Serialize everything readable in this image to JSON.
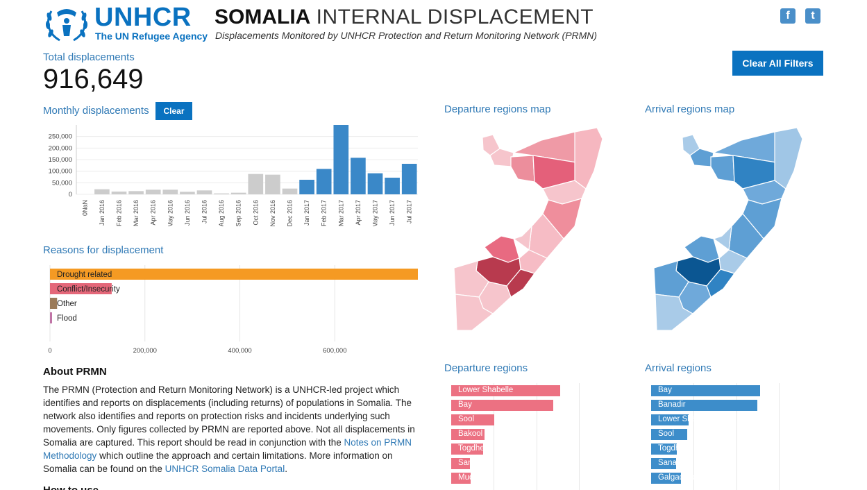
{
  "header": {
    "logo_name": "UNHCR",
    "logo_subtitle": "The UN Refugee Agency",
    "title_bold": "SOMALIA",
    "title_light": "INTERNAL DISPLACEMENT",
    "subtitle": "Displacements Monitored by UNHCR Protection and Return Monitoring Network (PRMN)",
    "facebook_glyph": "f",
    "twitter_glyph": "t"
  },
  "icons": {
    "logo": "laurel-person-emblem-icon",
    "facebook": "facebook-icon",
    "twitter": "twitter-icon"
  },
  "colors": {
    "brand_blue": "#0a72c0",
    "label_blue": "#2f79b5",
    "grey_bar": "#cccccc",
    "monthly_blue": "#3a88c8",
    "drought": "#f59a23",
    "conflict": "#e46779",
    "other": "#9b7b5a",
    "flood": "#c074a6",
    "departure_bar": "#ec7182",
    "arrival_bar": "#3d8dca"
  },
  "total": {
    "label": "Total displacements",
    "value": "916,649"
  },
  "buttons": {
    "clear_all": "Clear All Filters",
    "clear": "Clear"
  },
  "monthly": {
    "label": "Monthly displacements"
  },
  "reasons": {
    "label": "Reasons for displacement"
  },
  "maps": {
    "departure_label": "Departure regions map",
    "arrival_label": "Arrival regions map"
  },
  "departure_regions": {
    "label": "Departure regions",
    "xmax": 500000,
    "items": [
      {
        "name": "Lower Shabelle",
        "value": 320000
      },
      {
        "name": "Bay",
        "value": 300000
      },
      {
        "name": "Sool",
        "value": 127000
      },
      {
        "name": "Bakool",
        "value": 97000
      },
      {
        "name": "Togdheer",
        "value": 93000
      },
      {
        "name": "Sanaag",
        "value": 55000
      },
      {
        "name": "Mudug",
        "value": 58000
      }
    ]
  },
  "arrival_regions": {
    "label": "Arrival regions",
    "xmax": 500000,
    "items": [
      {
        "name": "Bay",
        "value": 320000
      },
      {
        "name": "Banadir",
        "value": 312000
      },
      {
        "name": "Lower Shabelle",
        "value": 110000
      },
      {
        "name": "Sool",
        "value": 106000
      },
      {
        "name": "Togdheer",
        "value": 75000
      },
      {
        "name": "Sanaag",
        "value": 73000
      },
      {
        "name": "Galgaduud",
        "value": 88000
      }
    ]
  },
  "about": {
    "title": "About PRMN",
    "text_1": "The PRMN (Protection and Return Monitoring Network) is a UNHCR-led project which identifies and reports on displacements (including returns) of populations in Somalia. The network also identifies and reports on protection risks and incidents underlying such movements. Only figures collected by PRMN are reported above. Not all displacements in Somalia are captured. This report should be read in conjunction with the ",
    "link_1": "Notes on PRMN Methodology",
    "text_2": " which outline the approach and certain limitations. More information on Somalia can be found on the ",
    "link_2": "UNHCR Somalia Data Portal",
    "text_3": ".",
    "next_heading": "How to use"
  },
  "chart_data": [
    {
      "type": "bar",
      "title": "Monthly displacements",
      "categories": [
        "0NaN",
        "Jan 2016",
        "Feb 2016",
        "Mar 2016",
        "Apr 2016",
        "May 2016",
        "Jun 2016",
        "Jul 2016",
        "Aug 2016",
        "Sep 2016",
        "Oct 2016",
        "Nov 2016",
        "Dec 2016",
        "Jan 2017",
        "Feb 2017",
        "Mar 2017",
        "Apr 2017",
        "May 2017",
        "Jun 2017",
        "Jul 2017"
      ],
      "values": [
        0,
        22000,
        12000,
        14000,
        20000,
        20000,
        11000,
        17000,
        4000,
        7000,
        88000,
        85000,
        25000,
        63000,
        110000,
        300000,
        158000,
        91000,
        72000,
        132000
      ],
      "highlighted": [
        false,
        false,
        false,
        false,
        false,
        false,
        false,
        false,
        false,
        false,
        false,
        false,
        false,
        true,
        true,
        true,
        true,
        true,
        true,
        true
      ],
      "yticks": [
        0,
        50000,
        100000,
        150000,
        200000,
        250000
      ],
      "ytick_labels": [
        "0",
        "50,000",
        "100,000",
        "150,000",
        "200,000",
        "250,000"
      ],
      "ylim": [
        0,
        300000
      ]
    },
    {
      "type": "bar",
      "title": "Reasons for displacement",
      "orientation": "horizontal",
      "categories": [
        "Drought related",
        "Conflict/Insecurity",
        "Other",
        "Flood"
      ],
      "values": [
        775000,
        130000,
        15000,
        4000
      ],
      "xticks": [
        0,
        200000,
        400000,
        600000
      ],
      "xtick_labels": [
        "0",
        "200,000",
        "400,000",
        "600,000"
      ],
      "xlim": [
        0,
        775000
      ]
    }
  ]
}
